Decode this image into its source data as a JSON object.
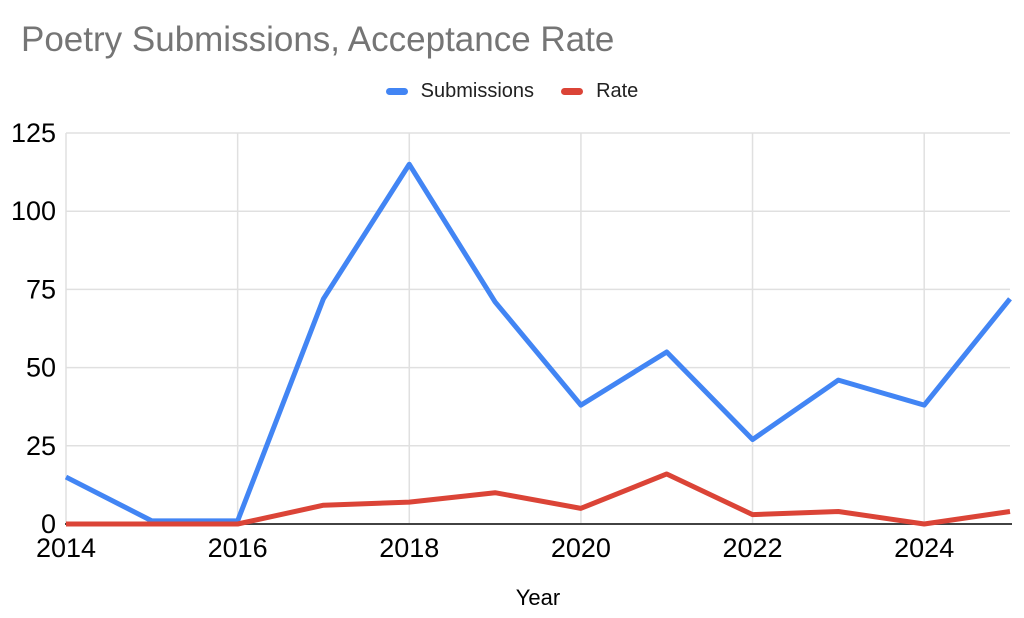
{
  "chart": {
    "title": "Poetry Submissions, Acceptance Rate",
    "xlabel": "Year",
    "legend": [
      {
        "label": "Submissions",
        "color": "#4285F4"
      },
      {
        "label": "Rate",
        "color": "#DB4437"
      }
    ]
  },
  "chart_data": {
    "type": "line",
    "title": "Poetry Submissions, Acceptance Rate",
    "xlabel": "Year",
    "ylabel": "",
    "x": [
      2014,
      2015,
      2016,
      2017,
      2018,
      2019,
      2020,
      2021,
      2022,
      2023,
      2024,
      2025
    ],
    "series": [
      {
        "name": "Submissions",
        "color": "#4285F4",
        "values": [
          15,
          1,
          1,
          72,
          115,
          71,
          38,
          55,
          27,
          46,
          38,
          72
        ]
      },
      {
        "name": "Rate",
        "color": "#DB4437",
        "values": [
          0,
          0,
          0,
          6,
          7,
          10,
          5,
          16,
          3,
          4,
          0,
          4
        ]
      }
    ],
    "ylim": [
      0,
      125
    ],
    "yticks": [
      0,
      25,
      50,
      75,
      100,
      125
    ],
    "xticks": [
      2014,
      2016,
      2018,
      2020,
      2022,
      2024
    ],
    "grid": true,
    "legend_position": "top"
  },
  "colors": {
    "title": "#757575",
    "tick_label": "#000000",
    "gridline": "#e0e0e0",
    "axis_line": "#424242",
    "background": "#ffffff"
  }
}
